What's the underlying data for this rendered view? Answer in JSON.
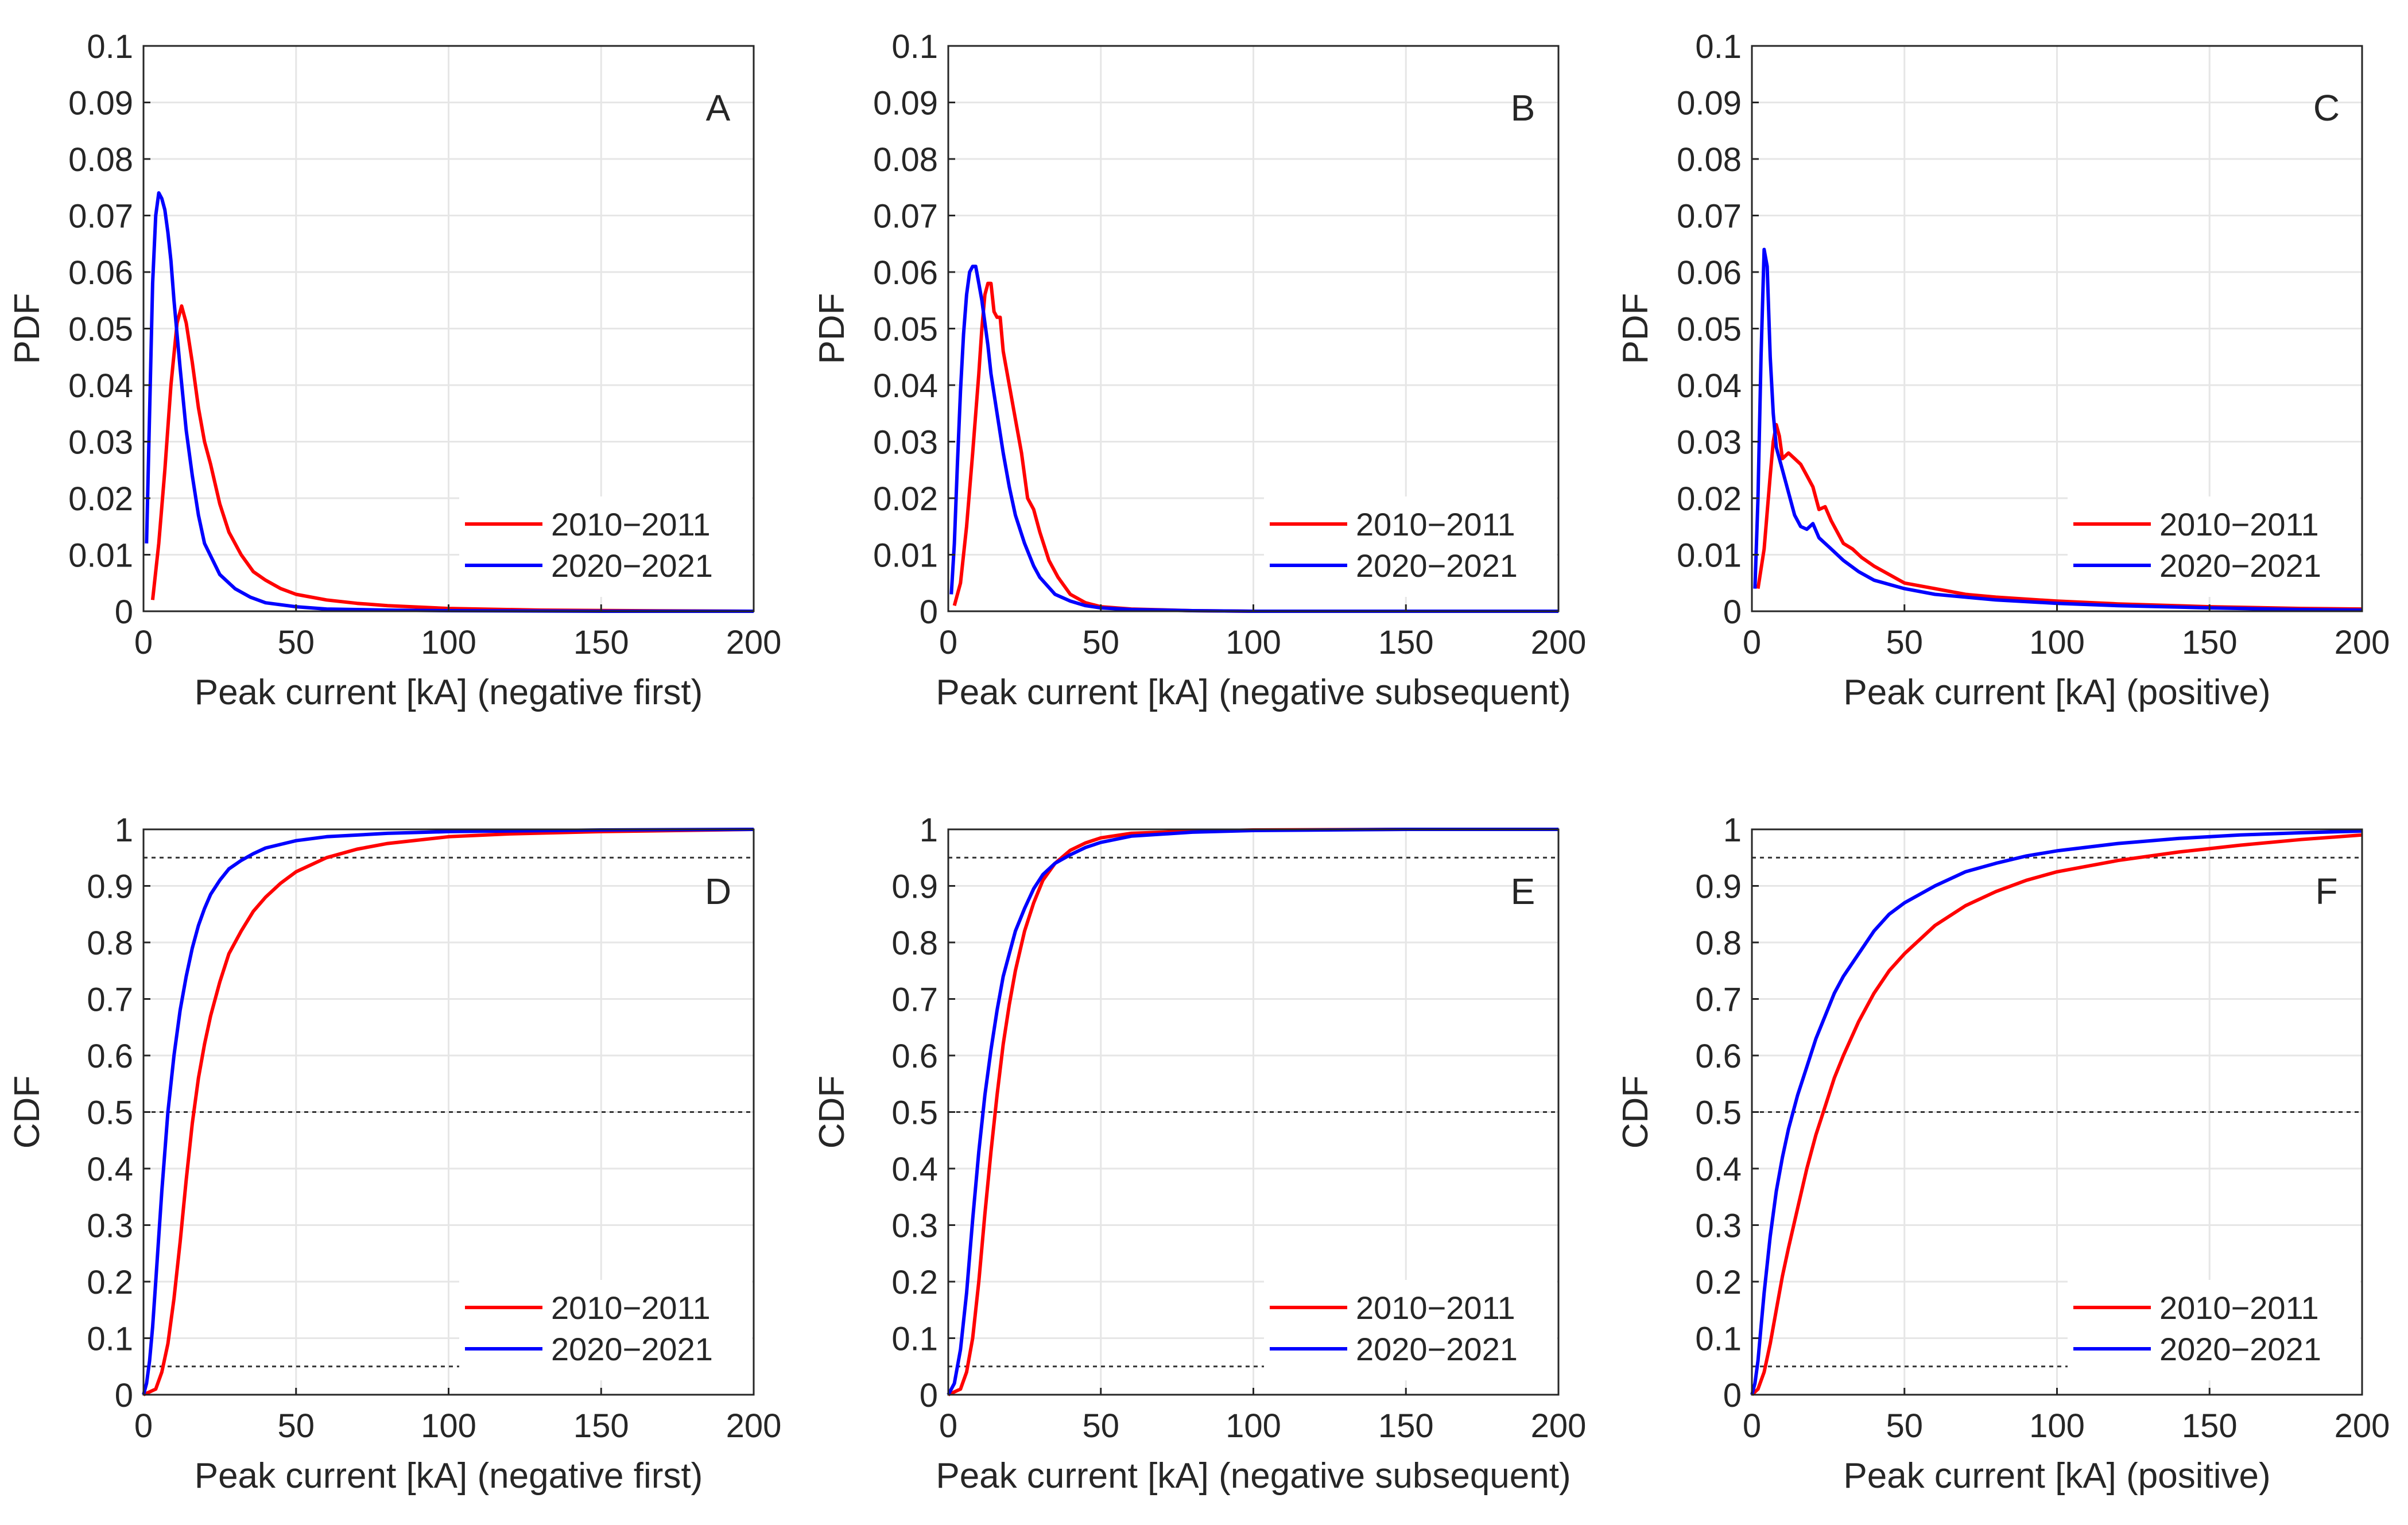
{
  "colors": {
    "series_2010": "#ff0000",
    "series_2020": "#0000ff",
    "grid": "#e6e6e6",
    "axis": "#262626",
    "ref_line": "#333333"
  },
  "chart_data": [
    {
      "id": "A",
      "type": "line",
      "label": "A",
      "xlabel": "Peak current [kA] (negative first)",
      "ylabel": "PDF",
      "xlim": [
        0,
        200
      ],
      "ylim": [
        0,
        0.1
      ],
      "xticks": [
        "0",
        "50",
        "100",
        "150",
        "200"
      ],
      "yticks": [
        "0",
        "0.01",
        "0.02",
        "0.03",
        "0.04",
        "0.05",
        "0.06",
        "0.07",
        "0.08",
        "0.09",
        "0.1"
      ],
      "legend": [
        "2010−2011",
        "2020−2021"
      ],
      "legend_position": "bottom-right",
      "series": [
        {
          "name": "2010−2011",
          "color": "#ff0000",
          "x": [
            3,
            5,
            7,
            9,
            11,
            12.5,
            14,
            16,
            18,
            20,
            22,
            25,
            28,
            32,
            36,
            40,
            45,
            50,
            60,
            70,
            80,
            100,
            130,
            160,
            200
          ],
          "y": [
            0.002,
            0.012,
            0.025,
            0.04,
            0.051,
            0.054,
            0.051,
            0.044,
            0.036,
            0.03,
            0.026,
            0.019,
            0.014,
            0.01,
            0.007,
            0.0055,
            0.004,
            0.003,
            0.002,
            0.0014,
            0.001,
            0.0005,
            0.0002,
            0.0001,
            0.0
          ]
        },
        {
          "name": "2020−2021",
          "color": "#0000ff",
          "x": [
            1,
            2,
            3,
            4,
            5,
            6,
            7,
            8,
            9,
            10,
            12,
            14,
            16,
            18,
            20,
            25,
            30,
            35,
            40,
            50,
            60,
            80,
            100,
            150,
            200
          ],
          "y": [
            0.012,
            0.035,
            0.058,
            0.07,
            0.074,
            0.073,
            0.071,
            0.067,
            0.062,
            0.055,
            0.043,
            0.032,
            0.024,
            0.017,
            0.012,
            0.0065,
            0.004,
            0.0025,
            0.0015,
            0.0008,
            0.0004,
            0.0002,
            0.0001,
            0.0,
            0.0
          ]
        }
      ]
    },
    {
      "id": "B",
      "type": "line",
      "label": "B",
      "xlabel": "Peak current [kA] (negative subsequent)",
      "ylabel": "PDF",
      "xlim": [
        0,
        200
      ],
      "ylim": [
        0,
        0.1
      ],
      "xticks": [
        "0",
        "50",
        "100",
        "150",
        "200"
      ],
      "yticks": [
        "0",
        "0.01",
        "0.02",
        "0.03",
        "0.04",
        "0.05",
        "0.06",
        "0.07",
        "0.08",
        "0.09",
        "0.1"
      ],
      "legend": [
        "2010−2011",
        "2020−2021"
      ],
      "legend_position": "bottom-right",
      "series": [
        {
          "name": "2010−2011",
          "color": "#ff0000",
          "x": [
            2,
            4,
            6,
            8,
            10,
            11,
            12,
            13,
            14,
            15,
            16,
            17,
            18,
            20,
            22,
            24,
            26,
            28,
            30,
            33,
            36,
            40,
            45,
            50,
            60,
            80,
            100,
            150,
            200
          ],
          "y": [
            0.001,
            0.005,
            0.015,
            0.028,
            0.042,
            0.05,
            0.056,
            0.058,
            0.058,
            0.053,
            0.052,
            0.052,
            0.046,
            0.04,
            0.034,
            0.028,
            0.02,
            0.018,
            0.014,
            0.009,
            0.006,
            0.003,
            0.0015,
            0.0008,
            0.0004,
            0.0001,
            0.0,
            0.0,
            0.0
          ]
        },
        {
          "name": "2020−2021",
          "color": "#0000ff",
          "x": [
            1,
            2,
            3,
            4,
            5,
            6,
            7,
            8,
            9,
            10,
            11,
            12,
            13,
            14,
            16,
            18,
            20,
            22,
            25,
            28,
            30,
            35,
            40,
            45,
            50,
            60,
            80,
            100,
            150,
            200
          ],
          "y": [
            0.003,
            0.012,
            0.026,
            0.039,
            0.049,
            0.056,
            0.06,
            0.061,
            0.061,
            0.058,
            0.055,
            0.051,
            0.047,
            0.042,
            0.035,
            0.028,
            0.022,
            0.017,
            0.012,
            0.008,
            0.006,
            0.003,
            0.0018,
            0.001,
            0.0006,
            0.0003,
            0.0001,
            0.0,
            0.0,
            0.0
          ]
        }
      ]
    },
    {
      "id": "C",
      "type": "line",
      "label": "C",
      "xlabel": "Peak current [kA] (positive)",
      "ylabel": "PDF",
      "xlim": [
        0,
        200
      ],
      "ylim": [
        0,
        0.1
      ],
      "xticks": [
        "0",
        "50",
        "100",
        "150",
        "200"
      ],
      "yticks": [
        "0",
        "0.01",
        "0.02",
        "0.03",
        "0.04",
        "0.05",
        "0.06",
        "0.07",
        "0.08",
        "0.09",
        "0.1"
      ],
      "legend": [
        "2010−2011",
        "2020−2021"
      ],
      "legend_position": "bottom-right",
      "series": [
        {
          "name": "2010−2011",
          "color": "#ff0000",
          "x": [
            2,
            4,
            6,
            7,
            8,
            9,
            10,
            12,
            14,
            16,
            18,
            20,
            22,
            24,
            26,
            28,
            30,
            33,
            36,
            40,
            45,
            50,
            60,
            70,
            80,
            100,
            120,
            150,
            180,
            200
          ],
          "y": [
            0.004,
            0.011,
            0.024,
            0.03,
            0.033,
            0.031,
            0.027,
            0.028,
            0.027,
            0.026,
            0.024,
            0.022,
            0.018,
            0.0185,
            0.016,
            0.014,
            0.012,
            0.011,
            0.0095,
            0.008,
            0.0065,
            0.005,
            0.004,
            0.003,
            0.0025,
            0.0018,
            0.0013,
            0.0008,
            0.0005,
            0.0004
          ]
        },
        {
          "name": "2020−2021",
          "color": "#0000ff",
          "x": [
            1,
            2,
            3,
            4,
            5,
            6,
            7,
            8,
            9,
            10,
            12,
            14,
            16,
            18,
            20,
            22,
            24,
            26,
            30,
            35,
            40,
            50,
            60,
            70,
            80,
            100,
            120,
            150,
            180,
            200
          ],
          "y": [
            0.004,
            0.02,
            0.045,
            0.064,
            0.061,
            0.045,
            0.035,
            0.029,
            0.027,
            0.025,
            0.021,
            0.017,
            0.015,
            0.0145,
            0.0155,
            0.013,
            0.012,
            0.011,
            0.009,
            0.007,
            0.0055,
            0.004,
            0.003,
            0.0025,
            0.002,
            0.0014,
            0.001,
            0.0006,
            0.0003,
            0.0002
          ]
        }
      ]
    },
    {
      "id": "D",
      "type": "line",
      "label": "D",
      "xlabel": "Peak current [kA] (negative first)",
      "ylabel": "CDF",
      "xlim": [
        0,
        200
      ],
      "ylim": [
        0,
        1
      ],
      "xticks": [
        "0",
        "50",
        "100",
        "150",
        "200"
      ],
      "yticks": [
        "0",
        "0.1",
        "0.2",
        "0.3",
        "0.4",
        "0.5",
        "0.6",
        "0.7",
        "0.8",
        "0.9",
        "1"
      ],
      "reference_lines": [
        0.05,
        0.5,
        0.95
      ],
      "legend": [
        "2010−2011",
        "2020−2021"
      ],
      "legend_position": "bottom-right",
      "series": [
        {
          "name": "2010−2011",
          "color": "#ff0000",
          "x": [
            0,
            4,
            6,
            8,
            10,
            12,
            14,
            16,
            18,
            20,
            22,
            25,
            28,
            32,
            36,
            40,
            45,
            50,
            60,
            70,
            80,
            100,
            120,
            150,
            200
          ],
          "y": [
            0,
            0.01,
            0.04,
            0.09,
            0.17,
            0.27,
            0.38,
            0.48,
            0.56,
            0.62,
            0.67,
            0.73,
            0.78,
            0.82,
            0.855,
            0.88,
            0.905,
            0.925,
            0.95,
            0.965,
            0.975,
            0.987,
            0.992,
            0.996,
            1.0
          ]
        },
        {
          "name": "2020−2021",
          "color": "#0000ff",
          "x": [
            0,
            1,
            2,
            3,
            4,
            5,
            6,
            7,
            8,
            10,
            12,
            14,
            16,
            18,
            20,
            22,
            25,
            28,
            32,
            36,
            40,
            50,
            60,
            80,
            100,
            150,
            200
          ],
          "y": [
            0,
            0.02,
            0.06,
            0.12,
            0.2,
            0.28,
            0.36,
            0.43,
            0.5,
            0.6,
            0.68,
            0.74,
            0.79,
            0.83,
            0.86,
            0.885,
            0.91,
            0.93,
            0.945,
            0.957,
            0.967,
            0.98,
            0.987,
            0.993,
            0.996,
            0.999,
            1.0
          ]
        }
      ]
    },
    {
      "id": "E",
      "type": "line",
      "label": "E",
      "xlabel": "Peak current [kA] (negative subsequent)",
      "ylabel": "CDF",
      "xlim": [
        0,
        200
      ],
      "ylim": [
        0,
        1
      ],
      "xticks": [
        "0",
        "50",
        "100",
        "150",
        "200"
      ],
      "yticks": [
        "0",
        "0.1",
        "0.2",
        "0.3",
        "0.4",
        "0.5",
        "0.6",
        "0.7",
        "0.8",
        "0.9",
        "1"
      ],
      "reference_lines": [
        0.05,
        0.5,
        0.95
      ],
      "legend": [
        "2010−2011",
        "2020−2021"
      ],
      "legend_position": "bottom-right",
      "series": [
        {
          "name": "2010−2011",
          "color": "#ff0000",
          "x": [
            0,
            4,
            6,
            8,
            10,
            12,
            14,
            16,
            18,
            20,
            22,
            25,
            28,
            31,
            35,
            40,
            45,
            50,
            60,
            80,
            100,
            150,
            200
          ],
          "y": [
            0,
            0.01,
            0.04,
            0.1,
            0.2,
            0.32,
            0.43,
            0.53,
            0.62,
            0.69,
            0.75,
            0.82,
            0.87,
            0.91,
            0.94,
            0.963,
            0.976,
            0.985,
            0.993,
            0.997,
            0.999,
            1.0,
            1.0
          ]
        },
        {
          "name": "2020−2021",
          "color": "#0000ff",
          "x": [
            0,
            2,
            4,
            6,
            8,
            10,
            12,
            14,
            16,
            18,
            20,
            22,
            25,
            28,
            31,
            35,
            40,
            45,
            50,
            60,
            80,
            100,
            150,
            200
          ],
          "y": [
            0,
            0.02,
            0.08,
            0.18,
            0.31,
            0.43,
            0.53,
            0.61,
            0.68,
            0.74,
            0.78,
            0.82,
            0.86,
            0.895,
            0.92,
            0.94,
            0.955,
            0.968,
            0.977,
            0.988,
            0.995,
            0.998,
            1.0,
            1.0
          ]
        }
      ]
    },
    {
      "id": "F",
      "type": "line",
      "label": "F",
      "xlabel": "Peak current [kA] (positive)",
      "ylabel": "CDF",
      "xlim": [
        0,
        200
      ],
      "ylim": [
        0,
        1
      ],
      "xticks": [
        "0",
        "50",
        "100",
        "150",
        "200"
      ],
      "yticks": [
        "0",
        "0.1",
        "0.2",
        "0.3",
        "0.4",
        "0.5",
        "0.6",
        "0.7",
        "0.8",
        "0.9",
        "1"
      ],
      "reference_lines": [
        0.05,
        0.5,
        0.95
      ],
      "legend": [
        "2010−2011",
        "2020−2021"
      ],
      "legend_position": "bottom-right",
      "series": [
        {
          "name": "2010−2011",
          "color": "#ff0000",
          "x": [
            0,
            2,
            4,
            6,
            8,
            10,
            12,
            15,
            18,
            21,
            24,
            27,
            30,
            35,
            40,
            45,
            50,
            60,
            70,
            80,
            90,
            100,
            120,
            140,
            160,
            180,
            200
          ],
          "y": [
            0,
            0.01,
            0.04,
            0.09,
            0.15,
            0.21,
            0.26,
            0.33,
            0.4,
            0.46,
            0.51,
            0.56,
            0.6,
            0.66,
            0.71,
            0.75,
            0.78,
            0.83,
            0.865,
            0.89,
            0.91,
            0.925,
            0.945,
            0.96,
            0.972,
            0.982,
            0.99
          ]
        },
        {
          "name": "2020−2021",
          "color": "#0000ff",
          "x": [
            0,
            1,
            2,
            3,
            4,
            5,
            6,
            7,
            8,
            10,
            12,
            15,
            18,
            21,
            24,
            27,
            30,
            35,
            40,
            45,
            50,
            60,
            70,
            80,
            90,
            100,
            120,
            140,
            160,
            180,
            200
          ],
          "y": [
            0,
            0.02,
            0.06,
            0.12,
            0.18,
            0.23,
            0.28,
            0.32,
            0.36,
            0.42,
            0.47,
            0.53,
            0.58,
            0.63,
            0.67,
            0.71,
            0.74,
            0.78,
            0.82,
            0.85,
            0.87,
            0.9,
            0.925,
            0.94,
            0.953,
            0.962,
            0.975,
            0.984,
            0.99,
            0.994,
            0.997
          ]
        }
      ]
    }
  ]
}
